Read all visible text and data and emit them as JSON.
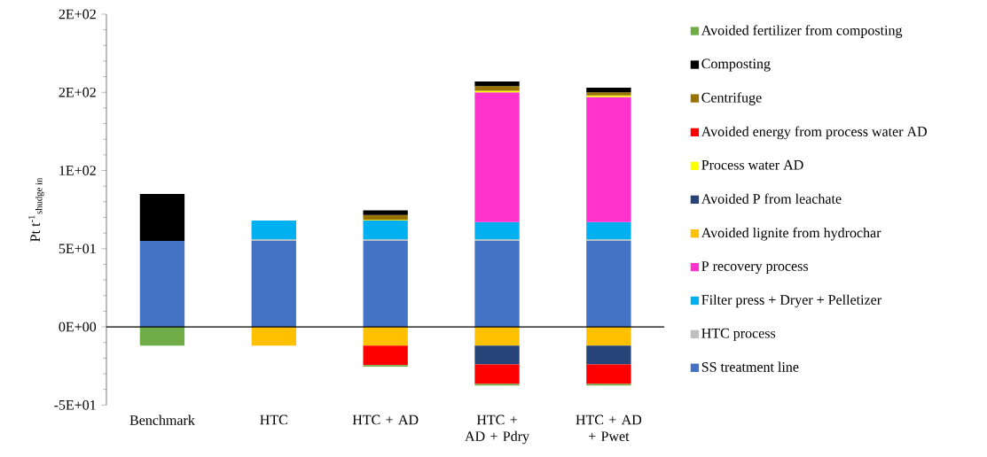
{
  "chart_data": {
    "type": "bar",
    "stacked": true,
    "legend": "right",
    "ylabel": "Pt t$^{-1}$$_{shudge in}$",
    "categories": [
      "Benchmark",
      "HTC",
      "HTC + AD",
      "HTC + AD + Pdry",
      "HTC + AD + Pwet"
    ],
    "ylim": [
      -50,
      200
    ],
    "yticks": [
      {
        "value": -50,
        "label": "-5E+01"
      },
      {
        "value": 0,
        "label": "0E+00"
      },
      {
        "value": 50,
        "label": "5E+01"
      },
      {
        "value": 100,
        "label": "1E+02"
      },
      {
        "value": 150,
        "label": "2E+02"
      },
      {
        "value": 200,
        "label": "2E+02"
      }
    ],
    "series": [
      {
        "name": "SS treatment line",
        "color": "#4472c4",
        "values": [
          55,
          55,
          55,
          55,
          55
        ]
      },
      {
        "name": "HTC process",
        "color": "#bfbfbf",
        "values": [
          null,
          1,
          1,
          1,
          1
        ]
      },
      {
        "name": "Filter press + Dryer + Pelletizer",
        "color": "#00b0f0",
        "values": [
          null,
          12,
          12,
          11,
          11
        ]
      },
      {
        "name": "P recovery process",
        "color": "#ff33cc",
        "values": [
          null,
          null,
          null,
          83,
          80
        ]
      },
      {
        "name": "Avoided lignite from hydrochar",
        "color": "#ffc000",
        "values": [
          null,
          -12,
          -12,
          -12,
          -12
        ]
      },
      {
        "name": "Avoided P from leachate",
        "color": "#264478",
        "values": [
          null,
          null,
          null,
          -12,
          -12
        ]
      },
      {
        "name": "Process water AD",
        "color": "#ffff00",
        "values": [
          null,
          null,
          0.5,
          1,
          1
        ]
      },
      {
        "name": "Avoided energy from process water AD",
        "color": "#ff0000",
        "values": [
          null,
          null,
          -12.5,
          -12.5,
          -12.5
        ]
      },
      {
        "name": "Centrifuge",
        "color": "#997300",
        "values": [
          null,
          null,
          3,
          3,
          2
        ]
      },
      {
        "name": "Composting",
        "color": "#000000",
        "values": [
          30,
          null,
          3,
          3,
          3
        ]
      },
      {
        "name": "Avoided fertilizer from composting",
        "color": "#70ad47",
        "values": [
          -12,
          null,
          -1,
          -1,
          -1
        ]
      }
    ]
  }
}
